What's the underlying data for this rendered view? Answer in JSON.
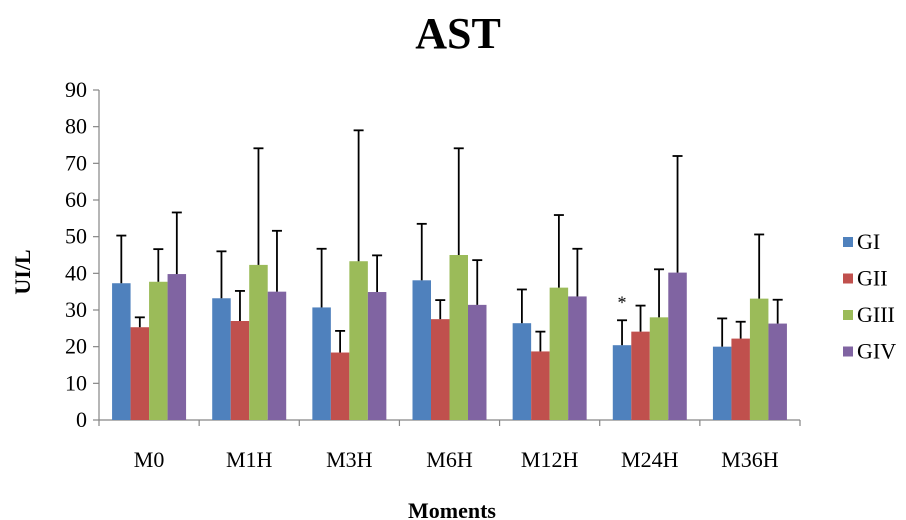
{
  "chart_data": {
    "type": "bar",
    "title": "AST",
    "xlabel": "Moments",
    "ylabel": "UI/L",
    "ylim": [
      0,
      90
    ],
    "yticks": [
      0,
      10,
      20,
      30,
      40,
      50,
      60,
      70,
      80,
      90
    ],
    "grid": false,
    "legend_position": "right",
    "categories": [
      "M0",
      "M1H",
      "M3H",
      "M6H",
      "M12H",
      "M24H",
      "M36H"
    ],
    "series": [
      {
        "name": "GI",
        "color": "#4F81BD",
        "values": [
          37.3,
          33.2,
          30.7,
          38.1,
          26.4,
          20.4,
          20.0
        ],
        "error_upper": [
          50.3,
          46.0,
          46.7,
          53.5,
          35.6,
          27.2,
          27.7
        ]
      },
      {
        "name": "GII",
        "color": "#C0504D",
        "values": [
          25.3,
          27.0,
          18.4,
          27.5,
          18.7,
          24.1,
          22.2
        ],
        "error_upper": [
          28.0,
          35.2,
          24.3,
          32.7,
          24.1,
          31.2,
          26.8
        ]
      },
      {
        "name": "GIII",
        "color": "#9BBB59",
        "values": [
          37.7,
          42.3,
          43.3,
          45.0,
          36.1,
          28.0,
          33.1
        ],
        "error_upper": [
          46.6,
          74.1,
          79.0,
          74.1,
          55.9,
          41.1,
          50.6
        ]
      },
      {
        "name": "GIV",
        "color": "#8064A2",
        "values": [
          39.8,
          35.0,
          34.9,
          31.4,
          33.7,
          40.2,
          26.3
        ],
        "error_upper": [
          56.6,
          51.6,
          44.9,
          43.6,
          46.7,
          72.0,
          32.8
        ]
      }
    ],
    "annotations": [
      {
        "text": "*",
        "category": "M24H",
        "series": "GI"
      }
    ]
  }
}
